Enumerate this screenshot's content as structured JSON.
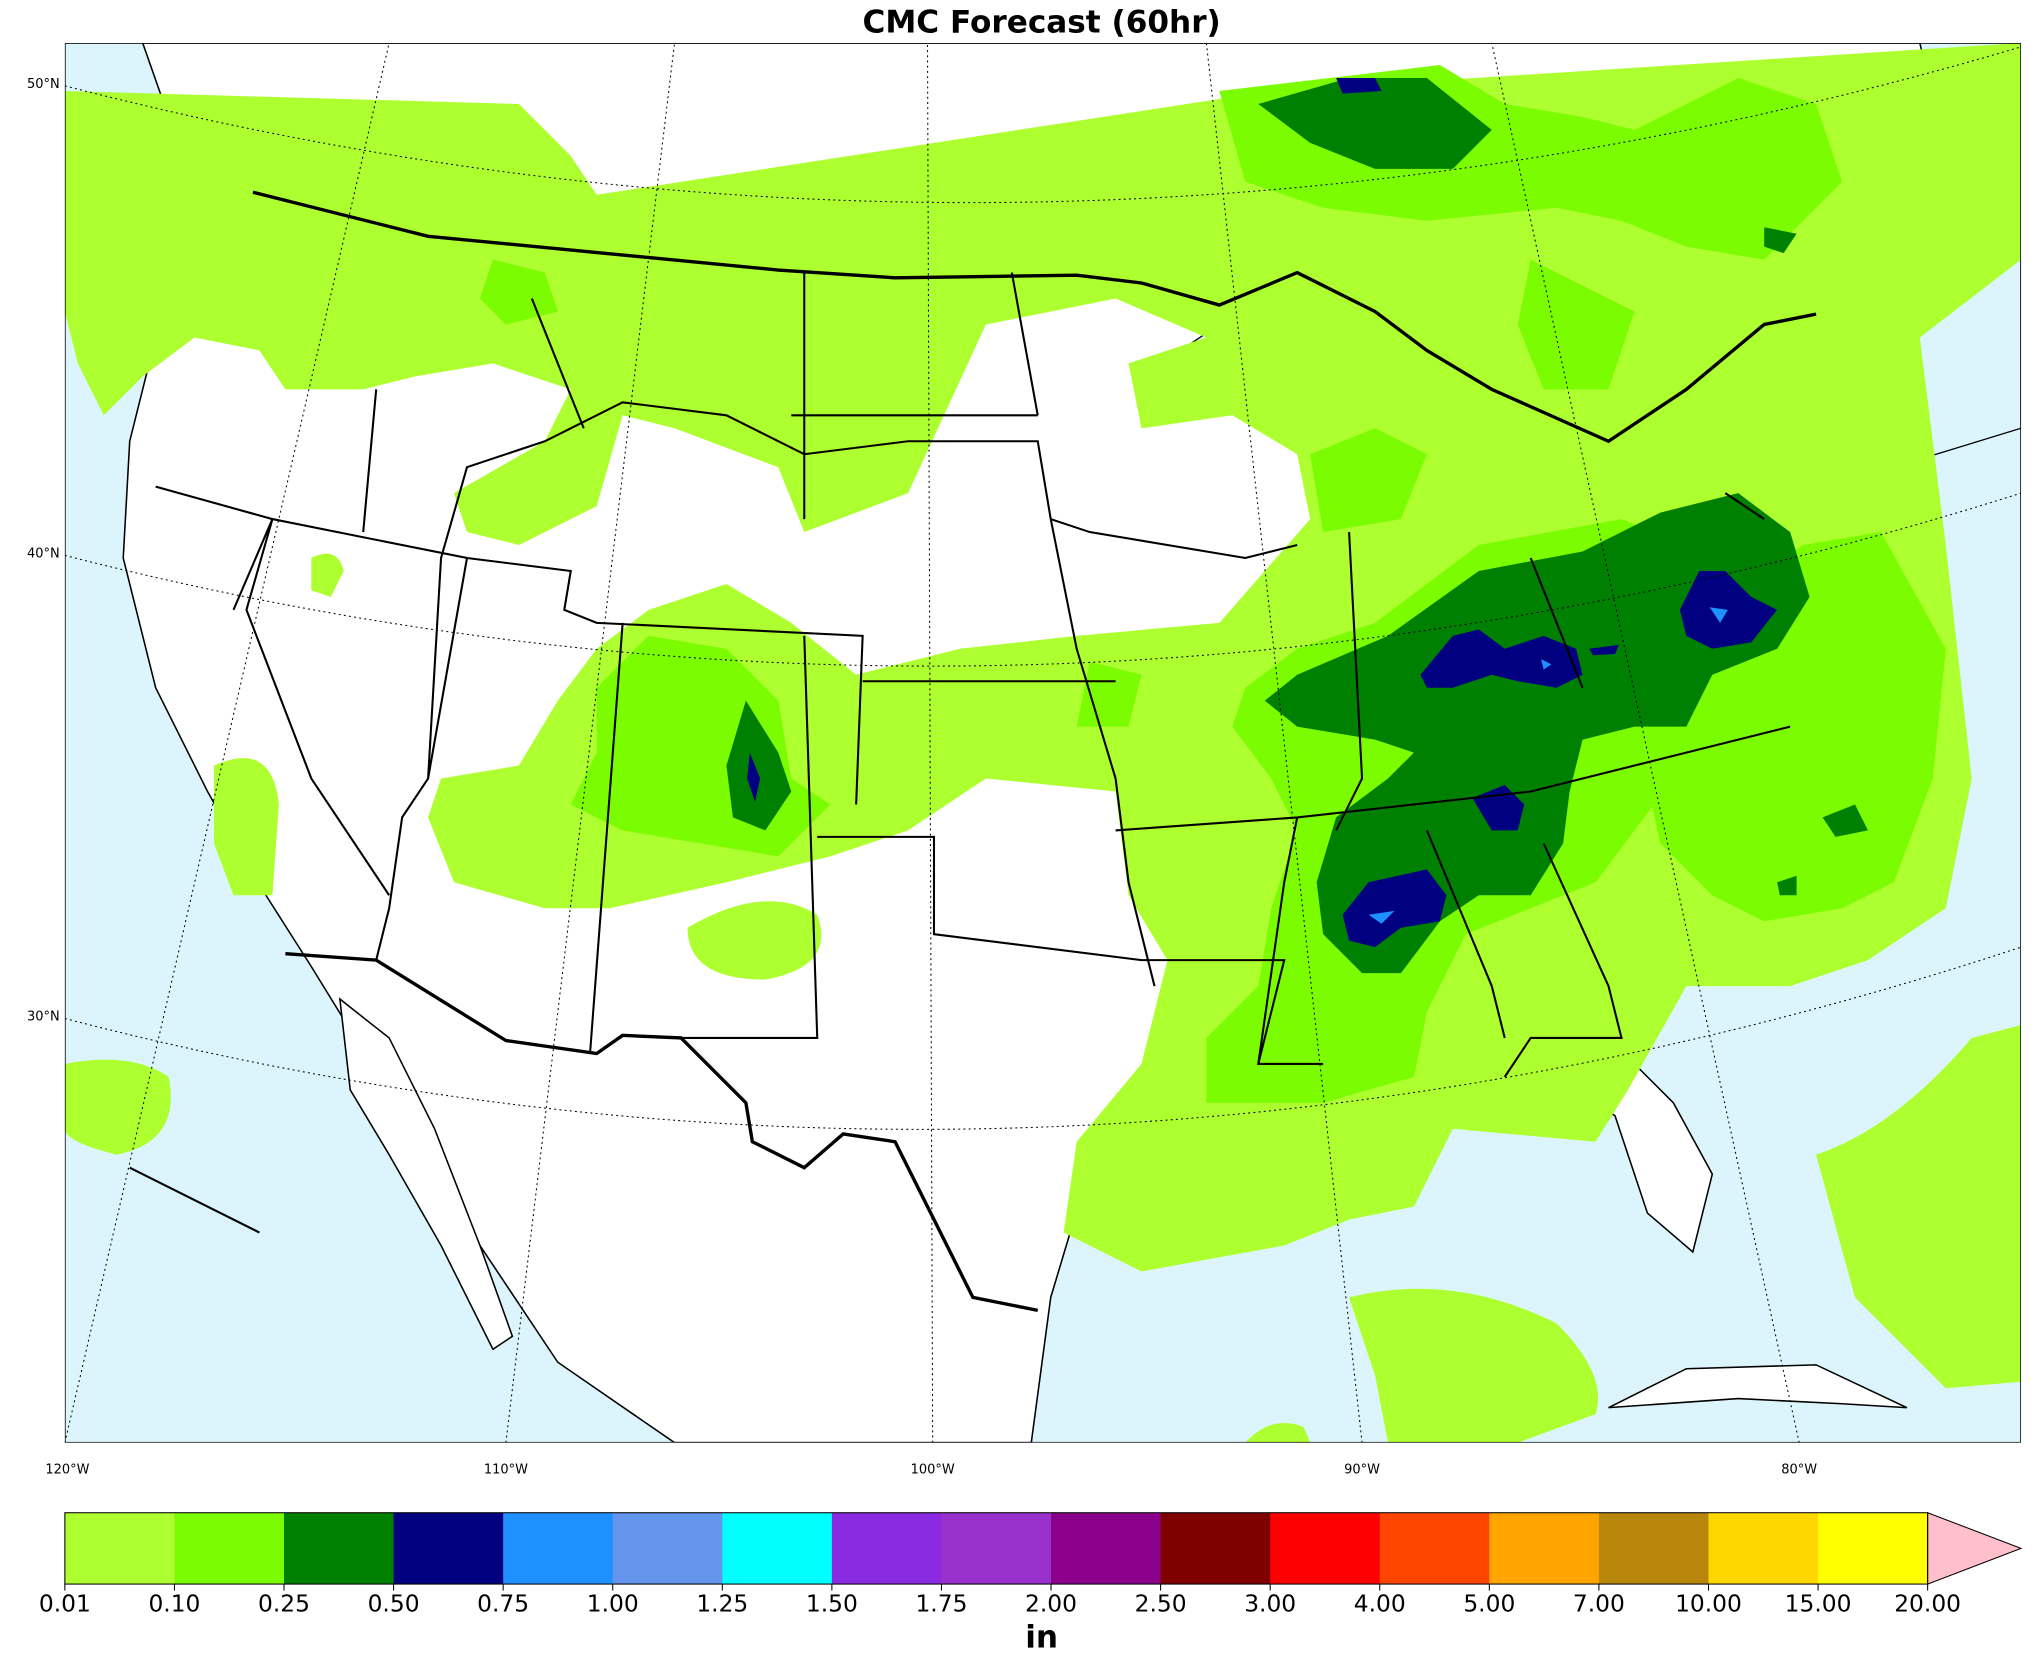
{
  "title": "CMC Forecast (60hr)",
  "latitude_labels": [
    "50°N",
    "40°N",
    "30°N"
  ],
  "longitude_labels": [
    "120°W",
    "110°W",
    "100°W",
    "90°W",
    "80°W"
  ],
  "colorbar": {
    "unit": "in",
    "ticks": [
      "0.01",
      "0.10",
      "0.25",
      "0.50",
      "0.75",
      "1.00",
      "1.25",
      "1.50",
      "1.75",
      "2.00",
      "2.50",
      "3.00",
      "4.00",
      "5.00",
      "7.00",
      "10.00",
      "15.00",
      "20.00"
    ],
    "colors": [
      "#adff2f",
      "#7cfc00",
      "#008000",
      "#000080",
      "#1e90ff",
      "#6495ed",
      "#00ffff",
      "#8a2be2",
      "#9932cc",
      "#8b008b",
      "#800000",
      "#ff0000",
      "#ff4500",
      "#ffa500",
      "#b8860b",
      "#ffd700",
      "#ffff00"
    ],
    "extend_color": "#ffc0cb"
  }
}
